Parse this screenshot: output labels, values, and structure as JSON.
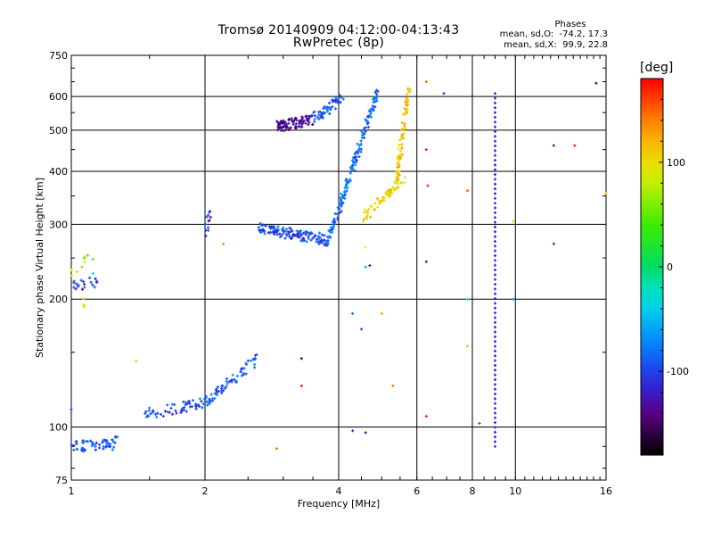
{
  "header": {
    "title_line1": "Tromsø 20140909 04:12:00-04:13:43",
    "title_line2": "RwPretec (8p)"
  },
  "stats": {
    "name": "Phases",
    "o_line": "mean, sd,O:  -74.2, 17.3",
    "x_line": "mean, sd,X:  99.9, 22.8"
  },
  "colorbar": {
    "label": "[deg]",
    "range": [
      -180,
      180
    ],
    "ticks": [
      100,
      0,
      -100
    ],
    "tick_labels": [
      "100",
      "0",
      "-100"
    ]
  },
  "chart_data": {
    "type": "scatter",
    "title": "Tromsø 20140909 04:12:00-04:13:43",
    "subtitle": "RwPretec (8p)",
    "xlabel": "Frequency [MHz]",
    "ylabel": "Stationary phase Virtual Height [km]",
    "x_scale": "log",
    "y_scale": "log",
    "xlim": [
      1,
      16
    ],
    "ylim": [
      75,
      750
    ],
    "x_ticks": [
      1,
      2,
      4,
      6,
      8,
      10,
      16
    ],
    "x_tick_labels": [
      "1",
      "2",
      "4",
      "6",
      "8",
      "10",
      "16"
    ],
    "y_ticks": [
      75,
      100,
      200,
      300,
      400,
      500,
      600,
      750
    ],
    "y_tick_labels": [
      "75",
      "100",
      "200",
      "300",
      "400",
      "500",
      "600",
      "750"
    ],
    "grid": true,
    "color_variable": "phase [deg]",
    "traces": [
      {
        "f_start": 1.0,
        "f_end": 1.23,
        "h_start": 90,
        "h_end": 91,
        "phase_mean": -90,
        "count": 50
      },
      {
        "f_start": 1.23,
        "f_end": 1.27,
        "h_start": 91,
        "h_end": 95,
        "phase_mean": -90,
        "count": 6
      },
      {
        "f_start": 1.45,
        "f_end": 2.0,
        "h_start": 107,
        "h_end": 114,
        "phase_mean": -95,
        "count": 55
      },
      {
        "f_start": 2.0,
        "f_end": 2.62,
        "h_start": 114,
        "h_end": 145,
        "phase_mean": -90,
        "count": 70
      },
      {
        "f_start": 2.0,
        "f_end": 2.05,
        "h_start": 285,
        "h_end": 320,
        "phase_mean": -110,
        "count": 12
      },
      {
        "f_start": 2.62,
        "f_end": 3.8,
        "h_start": 295,
        "h_end": 275,
        "phase_mean": -100,
        "count": 140
      },
      {
        "f_start": 3.8,
        "f_end": 4.9,
        "h_start": 275,
        "h_end": 620,
        "phase_mean": -85,
        "count": 160
      },
      {
        "f_start": 2.9,
        "f_end": 3.5,
        "h_start": 510,
        "h_end": 530,
        "phase_mean": -135,
        "count": 90
      },
      {
        "f_start": 3.5,
        "f_end": 4.1,
        "h_start": 530,
        "h_end": 600,
        "phase_mean": -90,
        "count": 50
      },
      {
        "f_start": 4.5,
        "f_end": 5.6,
        "h_start": 310,
        "h_end": 380,
        "phase_mean": 105,
        "count": 60
      },
      {
        "f_start": 5.4,
        "f_end": 5.75,
        "h_start": 380,
        "h_end": 630,
        "phase_mean": 110,
        "count": 80
      },
      {
        "f_start": 1.0,
        "f_end": 1.16,
        "h_start": 215,
        "h_end": 220,
        "phase_mean": -110,
        "count": 20
      },
      {
        "f_start": 1.0,
        "f_end": 1.15,
        "h_start": 230,
        "h_end": 260,
        "phase_mean": 60,
        "count": 10
      },
      {
        "f_start": 1.05,
        "f_end": 1.1,
        "h_start": 195,
        "h_end": 200,
        "phase_mean": 90,
        "count": 4
      }
    ],
    "columns": [
      {
        "f": 9.0,
        "h_start": 90,
        "h_end": 610,
        "phase": -120,
        "count": 75
      }
    ],
    "scatter_points": [
      {
        "f": 6.3,
        "h": 106,
        "phase": 170
      },
      {
        "f": 6.3,
        "h": 245,
        "phase": -120
      },
      {
        "f": 6.3,
        "h": 450,
        "phase": 170
      },
      {
        "f": 6.3,
        "h": 650,
        "phase": 150
      },
      {
        "f": 6.35,
        "h": 370,
        "phase": 170
      },
      {
        "f": 6.9,
        "h": 610,
        "phase": -110
      },
      {
        "f": 7.8,
        "h": 360,
        "phase": 150
      },
      {
        "f": 7.8,
        "h": 200,
        "phase": -40
      },
      {
        "f": 7.8,
        "h": 155,
        "phase": 120
      },
      {
        "f": 8.3,
        "h": 102,
        "phase": -90
      },
      {
        "f": 9.9,
        "h": 305,
        "phase": 110
      },
      {
        "f": 9.9,
        "h": 200,
        "phase": -70
      },
      {
        "f": 12.2,
        "h": 460,
        "phase": -140
      },
      {
        "f": 12.2,
        "h": 270,
        "phase": -110
      },
      {
        "f": 13.6,
        "h": 460,
        "phase": 175
      },
      {
        "f": 15.2,
        "h": 645,
        "phase": -150
      },
      {
        "f": 16.0,
        "h": 355,
        "phase": 120
      },
      {
        "f": 4.3,
        "h": 98,
        "phase": -110
      },
      {
        "f": 4.6,
        "h": 97,
        "phase": -130
      },
      {
        "f": 4.3,
        "h": 185,
        "phase": -80
      },
      {
        "f": 4.5,
        "h": 170,
        "phase": -100
      },
      {
        "f": 4.6,
        "h": 265,
        "phase": 90
      },
      {
        "f": 4.6,
        "h": 238,
        "phase": -60
      },
      {
        "f": 4.7,
        "h": 240,
        "phase": -130
      },
      {
        "f": 5.0,
        "h": 185,
        "phase": 130
      },
      {
        "f": 5.3,
        "h": 125,
        "phase": 140
      },
      {
        "f": 3.3,
        "h": 125,
        "phase": 170
      },
      {
        "f": 3.3,
        "h": 145,
        "phase": -150
      },
      {
        "f": 2.9,
        "h": 89,
        "phase": 140
      },
      {
        "f": 1.4,
        "h": 143,
        "phase": 110
      },
      {
        "f": 1.0,
        "h": 110,
        "phase": -110
      },
      {
        "f": 2.2,
        "h": 270,
        "phase": 140
      },
      {
        "f": 1.12,
        "h": 230,
        "phase": -20
      }
    ]
  }
}
